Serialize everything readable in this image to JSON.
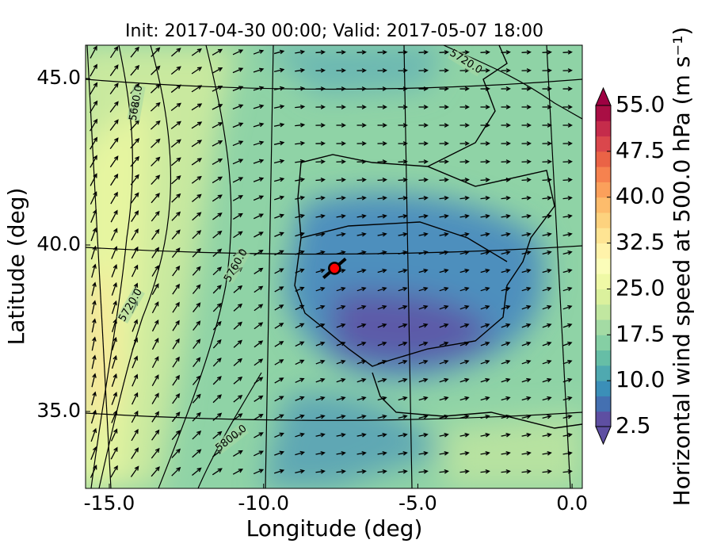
{
  "chart_data": {
    "type": "map",
    "title": "Init: 2017-04-30 00:00; Valid: 2017-05-07 18:00",
    "x_label": "Longitude (deg)",
    "y_label": "Latitude (deg)",
    "xlim": [
      -15.77,
      0.33
    ],
    "ylim": [
      32.69,
      46.0
    ],
    "xticks": [
      {
        "value": -15,
        "label": "-15.0"
      },
      {
        "value": -10,
        "label": "-10.0"
      },
      {
        "value": -5,
        "label": "-5.0"
      },
      {
        "value": 0,
        "label": "0.0"
      }
    ],
    "yticks": [
      {
        "value": 35,
        "label": "35.0"
      },
      {
        "value": 40,
        "label": "40.0"
      },
      {
        "value": 45,
        "label": "45.0"
      }
    ],
    "contour_labels": [
      "5720.0",
      "5680.0",
      "5760.0",
      "5720.0",
      "5800.0"
    ],
    "marker": {
      "lon": -7.7,
      "lat": 39.3,
      "color": "#ff0000"
    },
    "colorbar": {
      "label": "Horizontal wind speed at 500.0 hPa (m s⁻¹)",
      "clim": [
        2.5,
        55
      ],
      "ticks": [
        2.5,
        {
          "value": 10,
          "label": "10.0"
        },
        17.5,
        {
          "value": 25,
          "label": "25.0"
        },
        32.5,
        {
          "value": 40,
          "label": "40.0"
        },
        47.5,
        {
          "value": 55,
          "label": "55.0"
        }
      ],
      "colors": [
        "#5e4fa2",
        "#4470b1",
        "#3b8fb8",
        "#4fa9b0",
        "#66bea6",
        "#85cfa4",
        "#a4dba4",
        "#c1e7a0",
        "#dbf19d",
        "#eff9a6",
        "#fbfdb9",
        "#fff3aa",
        "#fee493",
        "#fdd27e",
        "#fdbc6c",
        "#fba05b",
        "#f6824f",
        "#ea6346",
        "#da474c",
        "#c52c4b",
        "#a90e44"
      ],
      "under_color": "#5e4fa2",
      "over_color": "#9e0142"
    }
  }
}
